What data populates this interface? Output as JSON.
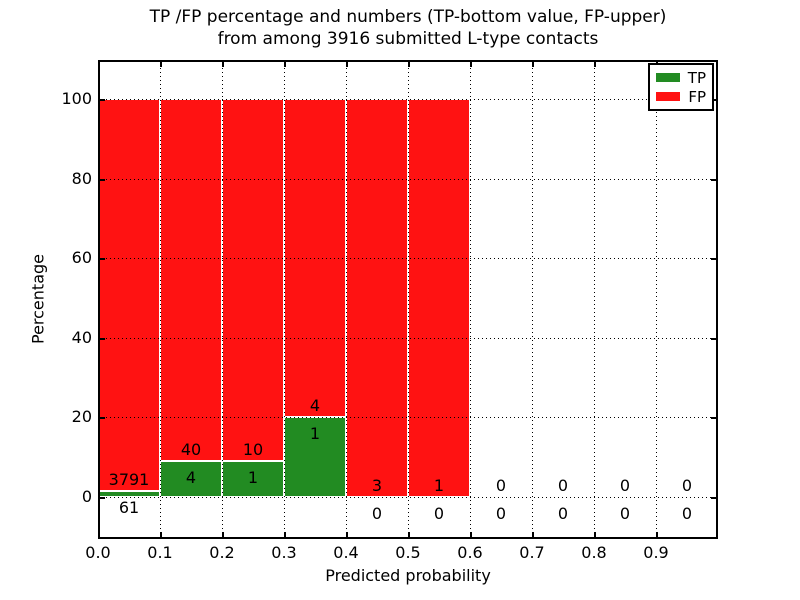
{
  "figure": {
    "title_line1": "TP /FP percentage and numbers (TP-bottom value, FP-upper)",
    "title_line2": "from among 3916 submitted L-type contacts",
    "xlabel": "Predicted probability",
    "ylabel": "Percentage"
  },
  "legend": {
    "position": "upper right",
    "items": [
      {
        "label": "TP",
        "color": "#228b22"
      },
      {
        "label": "FP",
        "color": "#ff1212"
      }
    ]
  },
  "axes": {
    "x_tick_labels": [
      "0.0",
      "0.1",
      "0.2",
      "0.3",
      "0.4",
      "0.5",
      "0.6",
      "0.7",
      "0.8",
      "0.9"
    ],
    "x_tick_values": [
      0.0,
      0.1,
      0.2,
      0.3,
      0.4,
      0.5,
      0.6,
      0.7,
      0.8,
      0.9
    ],
    "y_tick_labels": [
      "0",
      "20",
      "40",
      "60",
      "80",
      "100"
    ],
    "y_tick_values": [
      0,
      20,
      40,
      60,
      80,
      100
    ]
  },
  "chart_data": {
    "type": "bar",
    "stacked": true,
    "title": "TP /FP percentage and numbers (TP-bottom value, FP-upper) from among 3916 submitted L-type contacts",
    "xlabel": "Predicted probability",
    "ylabel": "Percentage",
    "total_submitted": 3916,
    "contact_type": "L-type",
    "annotation_note": "TP count shown at bottom, FP count shown above, per bar",
    "bin_edges": [
      0.0,
      0.1,
      0.2,
      0.3,
      0.4,
      0.5,
      0.6,
      0.7,
      0.8,
      0.9,
      1.0
    ],
    "categories": [
      "0.0-0.1",
      "0.1-0.2",
      "0.2-0.3",
      "0.3-0.4",
      "0.4-0.5",
      "0.5-0.6",
      "0.6-0.7",
      "0.7-0.8",
      "0.8-0.9",
      "0.9-1.0"
    ],
    "series": [
      {
        "name": "TP",
        "color": "#228b22",
        "counts": [
          61,
          4,
          1,
          1,
          0,
          0,
          0,
          0,
          0,
          0
        ],
        "percent": [
          1.58,
          9.09,
          9.09,
          20.0,
          0,
          0,
          0,
          0,
          0,
          0
        ]
      },
      {
        "name": "FP",
        "color": "#ff1212",
        "counts": [
          3791,
          40,
          10,
          4,
          3,
          1,
          0,
          0,
          0,
          0
        ],
        "percent": [
          98.42,
          90.91,
          90.91,
          80.0,
          100.0,
          100.0,
          0,
          0,
          0,
          0
        ]
      }
    ],
    "xlim": [
      0.0,
      1.0
    ],
    "ylim": [
      -10.5,
      110
    ],
    "grid": true,
    "legend_position": "upper right"
  },
  "colors": {
    "tp": "#228b22",
    "fp": "#ff1212",
    "grid": "#000000",
    "background": "#ffffff"
  }
}
